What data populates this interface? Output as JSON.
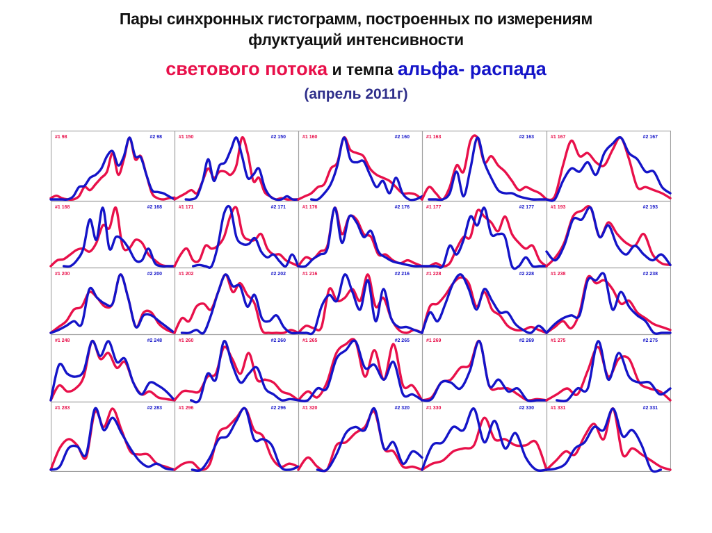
{
  "title": {
    "line1": "Пары синхронных гистограмм,  построенных по измерениям",
    "line2": "флуктуаций интенсивности",
    "line3_red": "светового потока",
    "line3_mid": " и темпа ",
    "line3_blue": "альфа- распада",
    "line4": "(апрель 2011г)"
  },
  "colors": {
    "series1": "#e8104a",
    "series2": "#1414c8",
    "grid": "#a0a0a0",
    "background": "#ffffff"
  },
  "chart_data": {
    "type": "line",
    "title": "Пары синхронных гистограмм, построенных по измерениям флуктуаций интенсивности светового потока и темпа альфа- распада (апрель 2011г)",
    "layout": {
      "rows": 5,
      "cols": 5,
      "grid": true,
      "legend": "per-panel labels top-left (#1, red) and top-right (#2, blue)"
    },
    "series_names": [
      "#1 (световой поток)",
      "#2 (альфа-распад)"
    ],
    "xlabel": "",
    "ylabel": "",
    "ylim": [
      0,
      1
    ],
    "panels": [
      {
        "id": "98",
        "label1": "#1 98",
        "label2": "#2 98",
        "s1": [
          0.02,
          0.06,
          0.02,
          0.0,
          0.0,
          0.05,
          0.2,
          0.15,
          0.25,
          0.35,
          0.45,
          0.75,
          0.4,
          0.65,
          1.0,
          0.65,
          0.7,
          0.4,
          0.1,
          0.02,
          0.0,
          0.02,
          0.03
        ],
        "s2": [
          0.0,
          0.0,
          0.0,
          0.0,
          0.05,
          0.2,
          0.22,
          0.35,
          0.4,
          0.5,
          0.7,
          0.78,
          0.55,
          0.7,
          1.0,
          0.7,
          0.68,
          0.4,
          0.15,
          0.12,
          0.1,
          0.05,
          0.0
        ]
      },
      {
        "id": "150",
        "label1": "#1 150",
        "label2": "#2 150",
        "s1": [
          0.0,
          0.05,
          0.1,
          0.15,
          0.1,
          0.3,
          0.5,
          0.35,
          0.45,
          0.45,
          0.4,
          0.55,
          1.0,
          0.75,
          0.3,
          0.35,
          0.12,
          0.05,
          0.0,
          0.02,
          0.0,
          0.0,
          0.0
        ],
        "s2": [
          null,
          null,
          0.0,
          0.0,
          0.05,
          0.3,
          0.65,
          0.3,
          0.55,
          0.6,
          0.8,
          1.0,
          0.7,
          0.35,
          0.4,
          0.5,
          0.2,
          0.05,
          0.0,
          0.0,
          0.05,
          0.0,
          0.0
        ]
      },
      {
        "id": "160",
        "label1": "#1 160",
        "label2": "#2 160",
        "s1": [
          0.0,
          0.05,
          0.1,
          0.2,
          0.25,
          0.5,
          0.6,
          1.0,
          0.8,
          0.75,
          0.7,
          0.5,
          0.4,
          0.35,
          0.3,
          0.2,
          0.1,
          0.1,
          0.08,
          0.0
        ],
        "s2": [
          null,
          null,
          0.0,
          0.0,
          0.1,
          0.25,
          0.55,
          1.0,
          0.65,
          0.6,
          0.62,
          0.4,
          0.2,
          0.3,
          0.1,
          0.35,
          0.1,
          0.0,
          0.0,
          0.05
        ]
      },
      {
        "id": "163",
        "label1": "#1 163",
        "label2": "#2 163",
        "s1": [
          0.0,
          0.2,
          0.1,
          0.0,
          0.2,
          0.55,
          0.45,
          0.95,
          1.0,
          0.6,
          0.7,
          0.55,
          0.45,
          0.3,
          0.15,
          0.2,
          0.15,
          0.1,
          0.0
        ],
        "s2": [
          null,
          0.0,
          0.0,
          0.0,
          0.1,
          0.45,
          0.05,
          0.5,
          1.0,
          0.6,
          0.35,
          0.15,
          0.1,
          0.1,
          0.05,
          0.02,
          0.0,
          0.0,
          0.0
        ]
      },
      {
        "id": "167",
        "label1": "#1 167",
        "label2": "#2 167",
        "s1": [
          0.0,
          0.05,
          0.55,
          0.95,
          0.7,
          0.75,
          0.6,
          0.55,
          0.8,
          1.0,
          0.65,
          0.2,
          0.2,
          0.15,
          0.1,
          0.02
        ],
        "s2": [
          0.0,
          0.0,
          0.3,
          0.5,
          0.45,
          0.6,
          0.4,
          0.75,
          0.9,
          1.0,
          0.75,
          0.65,
          0.45,
          0.45,
          0.2,
          0.1
        ]
      },
      {
        "id": "168",
        "label1": "#1 168",
        "label2": "#2 168",
        "s1": [
          0.0,
          0.1,
          0.12,
          0.2,
          0.28,
          0.3,
          0.25,
          0.4,
          0.7,
          0.65,
          1.0,
          0.35,
          0.3,
          0.45,
          0.4,
          0.2,
          0.1,
          0.02,
          0.0,
          0.0
        ],
        "s2": [
          null,
          null,
          0.0,
          0.0,
          0.1,
          0.3,
          0.8,
          0.45,
          1.0,
          0.3,
          0.5,
          0.45,
          0.3,
          0.1,
          0.1,
          0.3,
          0.05,
          0.0,
          0.0,
          0.0
        ]
      },
      {
        "id": "171",
        "label1": "#1 171",
        "label2": "#2 171",
        "s1": [
          0.0,
          0.2,
          0.3,
          0.1,
          0.1,
          0.35,
          0.3,
          0.35,
          0.5,
          0.85,
          1.0,
          0.55,
          0.45,
          0.45,
          0.55,
          0.3,
          0.2,
          0.2,
          0.1,
          0.05,
          0.0
        ],
        "s2": [
          null,
          null,
          null,
          0.0,
          0.02,
          0.0,
          0.0,
          0.35,
          0.9,
          1.0,
          0.5,
          0.38,
          0.38,
          0.48,
          0.25,
          0.15,
          0.2,
          0.08,
          0.0,
          0.2,
          0.0
        ]
      },
      {
        "id": "176",
        "label1": "#1 176",
        "label2": "#2 176",
        "s1": [
          0.0,
          0.15,
          0.12,
          0.25,
          0.35,
          1.0,
          0.55,
          0.85,
          0.8,
          0.55,
          0.5,
          0.2,
          0.2,
          0.1,
          0.05,
          0.1,
          0.05,
          0.0
        ],
        "s2": [
          0.0,
          0.0,
          0.12,
          0.2,
          0.3,
          1.0,
          0.4,
          0.85,
          0.75,
          0.5,
          0.6,
          0.25,
          0.15,
          0.08,
          0.05,
          0.02,
          0.0,
          0.0
        ]
      },
      {
        "id": "177",
        "label1": "#1 177",
        "label2": "#2 177",
        "s1": [
          0.0,
          0.0,
          0.05,
          0.0,
          0.05,
          0.3,
          0.5,
          0.5,
          0.95,
          0.85,
          0.75,
          0.6,
          0.85,
          0.55,
          0.4,
          0.3,
          0.35,
          0.1,
          0.0
        ],
        "s2": [
          0.0,
          0.0,
          0.0,
          0.0,
          0.35,
          0.2,
          0.45,
          0.85,
          0.7,
          1.0,
          0.55,
          0.55,
          0.5,
          0.0,
          0.0,
          0.15,
          0.0,
          0.0,
          0.0
        ]
      },
      {
        "id": "193",
        "label1": "#1 193",
        "label2": "#2 193",
        "s1": [
          0.0,
          0.15,
          0.4,
          0.85,
          0.95,
          1.0,
          0.5,
          0.75,
          0.55,
          0.4,
          0.35,
          0.55,
          0.2,
          0.05,
          0.02
        ],
        "s2": [
          0.25,
          0.1,
          0.35,
          0.8,
          0.8,
          1.0,
          0.5,
          0.7,
          0.35,
          0.2,
          0.35,
          0.2,
          0.1,
          0.2,
          0.02
        ]
      },
      {
        "id": "200",
        "label1": "#1 200",
        "label2": "#2 200",
        "s1": [
          0.0,
          0.1,
          0.2,
          0.4,
          0.45,
          0.7,
          0.6,
          0.45,
          0.5,
          1.0,
          0.6,
          0.1,
          0.35,
          0.35,
          0.15,
          0.05,
          0.0
        ],
        "s2": [
          0.0,
          0.05,
          0.12,
          0.2,
          0.15,
          0.75,
          0.6,
          0.5,
          0.5,
          1.0,
          0.6,
          0.1,
          0.3,
          0.3,
          0.2,
          0.1,
          0.0
        ]
      },
      {
        "id": "202",
        "label1": "#1 202",
        "label2": "#2 202",
        "s1": [
          0.0,
          0.25,
          0.2,
          0.45,
          0.5,
          0.4,
          0.7,
          1.0,
          0.7,
          0.85,
          0.65,
          0.5,
          0.05,
          0.0,
          0.0,
          0.0,
          0.05,
          0.0
        ],
        "s2": [
          null,
          0.0,
          0.0,
          0.05,
          0.0,
          0.3,
          0.7,
          1.0,
          0.8,
          0.8,
          0.45,
          0.65,
          0.25,
          0.2,
          0.3,
          0.1,
          0.0,
          0.0
        ]
      },
      {
        "id": "216",
        "label1": "#1 216",
        "label2": "#2 216",
        "s1": [
          0.0,
          0.12,
          0.08,
          0.1,
          0.75,
          0.55,
          0.6,
          0.75,
          0.55,
          1.0,
          0.45,
          0.6,
          0.25,
          0.05,
          0.0,
          0.05,
          0.0
        ],
        "s2": [
          0.0,
          0.0,
          0.02,
          0.45,
          0.65,
          0.55,
          1.0,
          0.7,
          0.4,
          0.9,
          0.2,
          0.75,
          0.25,
          0.1,
          0.1,
          0.05,
          0.0
        ]
      },
      {
        "id": "228",
        "label1": "#1 228",
        "label2": "#2 228",
        "s1": [
          0.0,
          0.45,
          0.5,
          0.65,
          0.85,
          0.95,
          0.85,
          0.45,
          0.7,
          0.4,
          0.3,
          0.12,
          0.05,
          0.05,
          0.1,
          0.05,
          0.0
        ],
        "s2": [
          0.0,
          0.35,
          0.2,
          0.5,
          0.85,
          1.0,
          0.75,
          0.4,
          0.75,
          0.55,
          0.35,
          0.35,
          0.15,
          0.05,
          0.0,
          0.12,
          0.0
        ]
      },
      {
        "id": "238",
        "label1": "#1 238",
        "label2": "#2 238",
        "s1": [
          0.0,
          0.1,
          0.2,
          0.08,
          0.35,
          0.95,
          0.85,
          0.9,
          0.75,
          0.5,
          0.55,
          0.35,
          0.25,
          0.15,
          0.1,
          0.05
        ],
        "s2": [
          0.0,
          0.15,
          0.25,
          0.3,
          0.3,
          0.9,
          0.9,
          1.0,
          0.4,
          0.7,
          0.45,
          0.3,
          0.2,
          0.0,
          0.0,
          0.0
        ]
      },
      {
        "id": "248",
        "label1": "#1 248",
        "label2": "#2 248",
        "s1": [
          0.0,
          0.25,
          0.15,
          0.2,
          0.4,
          1.0,
          0.7,
          0.8,
          0.55,
          0.65,
          0.3,
          0.1,
          0.15,
          0.05,
          0.02,
          0.0
        ],
        "s2": [
          0.0,
          0.6,
          0.45,
          0.4,
          0.5,
          1.0,
          0.75,
          1.0,
          0.65,
          0.7,
          0.3,
          0.1,
          0.3,
          0.25,
          0.15,
          0.0
        ]
      },
      {
        "id": "260",
        "label1": "#1 260",
        "label2": "#2 260",
        "s1": [
          0.0,
          0.15,
          0.15,
          0.15,
          0.4,
          0.45,
          0.9,
          0.7,
          0.45,
          0.8,
          0.35,
          0.35,
          0.3,
          0.15,
          0.1,
          0.0
        ],
        "s2": [
          null,
          null,
          0.0,
          0.0,
          0.45,
          0.35,
          1.0,
          0.6,
          0.3,
          0.45,
          0.55,
          0.2,
          0.1,
          0.0,
          0.02,
          0.0
        ]
      },
      {
        "id": "265",
        "label1": "#1 265",
        "label2": "#2 265",
        "s1": [
          0.0,
          0.15,
          0.05,
          0.3,
          0.8,
          0.95,
          1.0,
          0.4,
          0.85,
          0.35,
          0.95,
          0.25,
          0.25,
          0.0
        ],
        "s2": [
          0.0,
          0.0,
          0.2,
          0.2,
          0.7,
          0.85,
          1.0,
          0.55,
          0.6,
          0.35,
          0.65,
          0.1,
          0.1,
          0.0
        ]
      },
      {
        "id": "269",
        "label1": "#1 269",
        "label2": "#2 269",
        "s1": [
          0.0,
          0.05,
          0.3,
          0.35,
          0.55,
          0.6,
          1.0,
          0.25,
          0.2,
          0.2,
          0.1,
          0.0,
          0.02,
          0.0
        ],
        "s2": [
          0.0,
          0.02,
          0.3,
          0.3,
          0.2,
          0.5,
          1.0,
          0.25,
          0.35,
          0.15,
          0.2,
          0.0,
          0.0,
          0.0
        ]
      },
      {
        "id": "275",
        "label1": "#1 275",
        "label2": "#2 275",
        "s1": [
          0.0,
          0.1,
          0.2,
          0.1,
          0.5,
          0.9,
          0.4,
          0.7,
          0.7,
          0.3,
          0.2,
          0.15,
          0.0
        ],
        "s2": [
          null,
          0.0,
          0.0,
          0.2,
          0.2,
          1.0,
          0.35,
          0.8,
          0.4,
          0.3,
          0.3,
          0.1,
          0.2
        ]
      },
      {
        "id": "283",
        "label1": "#1 283",
        "label2": "#2 283",
        "s1": [
          0.0,
          0.35,
          0.5,
          0.4,
          0.2,
          0.95,
          0.7,
          1.0,
          0.65,
          0.3,
          0.25,
          0.25,
          0.1,
          0.05,
          0.0
        ],
        "s2": [
          0.0,
          0.05,
          0.35,
          0.38,
          0.25,
          1.0,
          0.65,
          0.85,
          0.6,
          0.35,
          0.15,
          0.05,
          0.1,
          0.02,
          0.0
        ]
      },
      {
        "id": "296",
        "label1": "#1 296",
        "label2": "#2 296",
        "s1": [
          0.0,
          0.1,
          0.12,
          0.0,
          0.1,
          0.6,
          0.7,
          0.85,
          1.0,
          0.65,
          0.55,
          0.2,
          0.05,
          0.1,
          0.05
        ],
        "s2": [
          null,
          null,
          0.0,
          0.0,
          0.2,
          0.5,
          0.55,
          0.8,
          1.0,
          0.5,
          0.5,
          0.4,
          0.05,
          0.0,
          0.05
        ]
      },
      {
        "id": "320",
        "label1": "#1 320",
        "label2": "#2 320",
        "s1": [
          0.0,
          0.2,
          0.05,
          0.0,
          0.4,
          0.45,
          0.6,
          0.7,
          0.95,
          0.35,
          0.3,
          0.05,
          0.05,
          0.0
        ],
        "s2": [
          null,
          null,
          0.0,
          0.0,
          0.25,
          0.6,
          0.7,
          0.65,
          1.0,
          0.35,
          0.45,
          0.1,
          0.3,
          0.2
        ]
      },
      {
        "id": "330",
        "label1": "#1 330",
        "label2": "#2 330",
        "s1": [
          0.0,
          0.1,
          0.15,
          0.3,
          0.35,
          0.4,
          0.85,
          0.5,
          0.5,
          0.4,
          0.4,
          0.45,
          0.0
        ],
        "s2": [
          0.0,
          0.4,
          0.45,
          0.7,
          0.65,
          1.0,
          0.45,
          0.8,
          0.35,
          0.6,
          0.2,
          0.0,
          0.0
        ]
      },
      {
        "id": "331",
        "label1": "#1 331",
        "label2": "#2 331",
        "s1": [
          0.0,
          0.15,
          0.3,
          0.25,
          0.55,
          0.75,
          0.5,
          1.0,
          0.25,
          0.35,
          0.25,
          0.15,
          0.05,
          0.0
        ],
        "s2": [
          0.0,
          0.02,
          0.1,
          0.35,
          0.45,
          0.7,
          0.65,
          1.0,
          0.55,
          0.65,
          0.4,
          0.0,
          0.0,
          null
        ]
      }
    ]
  }
}
